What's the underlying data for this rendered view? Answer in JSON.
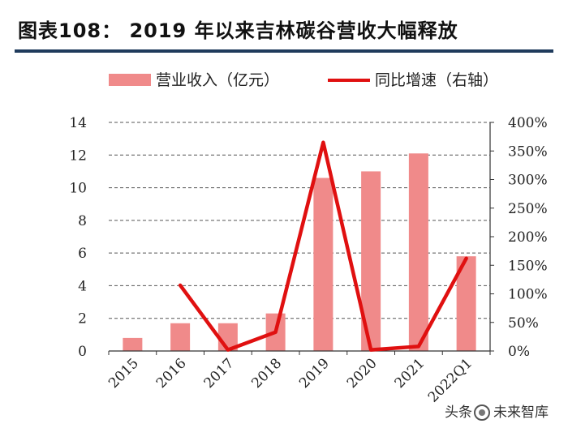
{
  "title": "图表108： 2019 年以来吉林碳谷营收大幅释放",
  "watermark": {
    "prefix": "头条",
    "name": "未来智库",
    "icon": "watermark-logo-icon"
  },
  "colors": {
    "bar": "#f08a8a",
    "line": "#e01010",
    "grid": "#555555",
    "rule": "#1f3b5c"
  },
  "chart_data": {
    "type": "bar",
    "title": "",
    "categories": [
      "2015",
      "2016",
      "2017",
      "2018",
      "2019",
      "2020",
      "2021",
      "2022Q1"
    ],
    "series": [
      {
        "name": "营业收入（亿元）",
        "kind": "bar",
        "axis": "left",
        "values": [
          0.8,
          1.7,
          1.7,
          2.3,
          10.6,
          11.0,
          12.1,
          5.8
        ]
      },
      {
        "name": "同比增速（右轴）",
        "kind": "line",
        "axis": "right",
        "values": [
          null,
          115,
          2,
          33,
          365,
          2,
          8,
          162
        ]
      }
    ],
    "y_left": {
      "min": 0,
      "max": 14,
      "step": 2,
      "ticks": [
        "0",
        "2",
        "4",
        "6",
        "8",
        "10",
        "12",
        "14"
      ]
    },
    "y_right": {
      "min": 0,
      "max": 400,
      "step": 50,
      "ticks": [
        "0%",
        "50%",
        "100%",
        "150%",
        "200%",
        "250%",
        "300%",
        "350%",
        "400%"
      ]
    },
    "grid": "dashed-horizontal",
    "legend_position": "top"
  }
}
